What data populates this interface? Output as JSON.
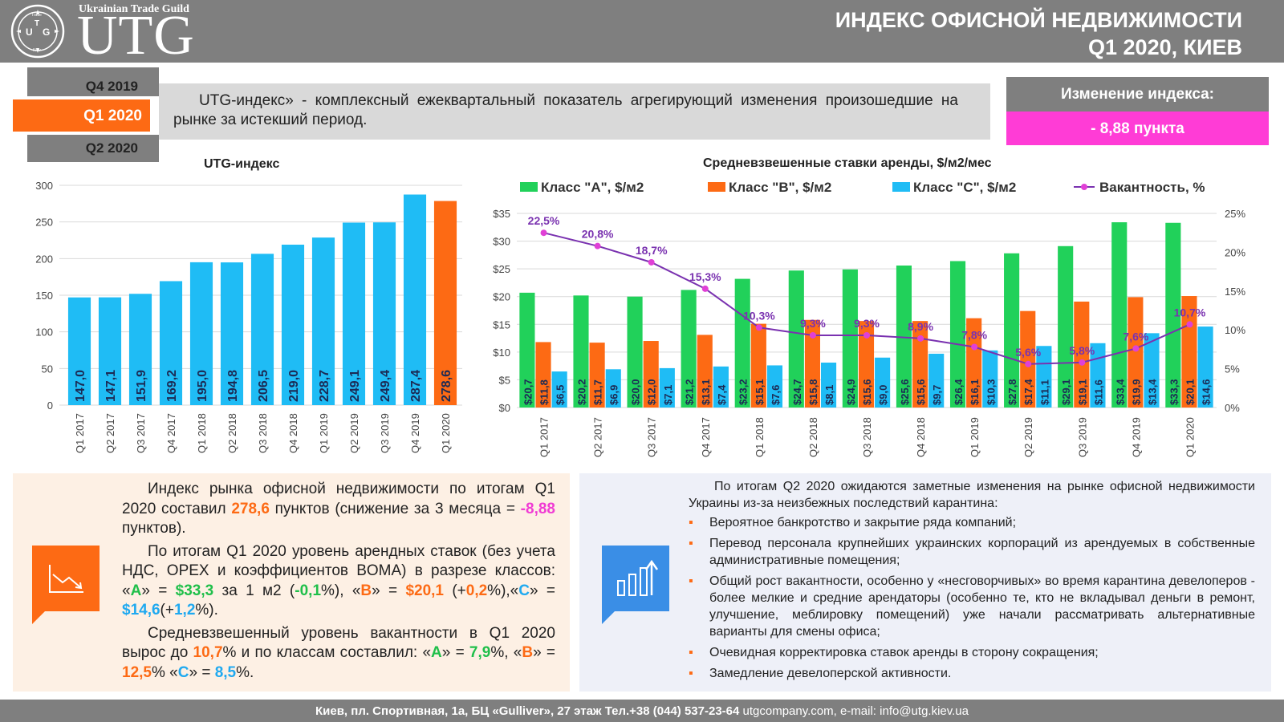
{
  "header": {
    "logo_guild": "Ukrainian Trade Guild",
    "logo_text": "UTG",
    "logo_emblem": {
      "letters": [
        "U",
        "T",
        "G"
      ],
      "small_words": [
        "Trade",
        "Guild",
        "Kiev",
        "Ukrainian"
      ]
    },
    "title_line1": "ИНДЕКС ОФИСНОЙ НЕДВИЖИМОСТИ",
    "title_line2": "Q1 2020, КИЕВ"
  },
  "quarters": {
    "prev": "Q4 2019",
    "current": "Q1 2020",
    "next": "Q2 2020"
  },
  "description": "UTG-индекс» - комплексный ежеквартальный показатель агрегирующий изменения произошедшие на рынке за истекший период.",
  "index_change": {
    "label": "Изменение индекса:",
    "value": "- 8,88 пункта"
  },
  "colors": {
    "orange": "#fd6a14",
    "blue": "#1fbcf5",
    "green": "#21d15a",
    "pink": "#ff3cd6",
    "purple": "#7a32b0",
    "gray": "#7f7f7f"
  },
  "chart_data": [
    {
      "type": "bar",
      "title": "UTG-индекс",
      "categories": [
        "Q1 2017",
        "Q2 2017",
        "Q3 2017",
        "Q4 2017",
        "Q1 2018",
        "Q2 2018",
        "Q3 2018",
        "Q4 2018",
        "Q1 2019",
        "Q2 2019",
        "Q3 2019",
        "Q4 2019",
        "Q1 2020"
      ],
      "values": [
        147.0,
        147.1,
        151.9,
        169.2,
        195.0,
        194.8,
        206.5,
        219.0,
        228.7,
        249.1,
        249.4,
        287.4,
        278.6
      ],
      "value_labels": [
        "147,0",
        "147,1",
        "151,9",
        "169,2",
        "195,0",
        "194,8",
        "206,5",
        "219,0",
        "228,7",
        "249,1",
        "249,4",
        "287,4",
        "278,6"
      ],
      "highlight_last": true,
      "ylim": [
        0,
        300
      ],
      "yticks": [
        0,
        50,
        100,
        150,
        200,
        250,
        300
      ],
      "grid": true
    },
    {
      "type": "bar",
      "title": "Средневзвешенные ставки аренды, $/м2/мес",
      "categories": [
        "Q1 2017",
        "Q2 2017",
        "Q3 2017",
        "Q4 2017",
        "Q1 2018",
        "Q2 2018",
        "Q3 2018",
        "Q4 2018",
        "Q1 2019",
        "Q2 2019",
        "Q3 2019",
        "Q4 2019",
        "Q1 2020"
      ],
      "series": [
        {
          "name": "Класс \"А\", $/м2",
          "values": [
            20.7,
            20.2,
            20.0,
            21.2,
            23.2,
            24.7,
            24.9,
            25.6,
            26.4,
            27.8,
            29.1,
            33.4,
            33.3
          ],
          "labels": [
            "$20,7",
            "$20,2",
            "$20,0",
            "$21,2",
            "$23,2",
            "$24,7",
            "$24,9",
            "$25,6",
            "$26,4",
            "$27,8",
            "$29,1",
            "$33,4",
            "$33,3"
          ]
        },
        {
          "name": "Класс \"В\", $/м2",
          "values": [
            11.8,
            11.7,
            12.0,
            13.1,
            15.1,
            15.8,
            15.6,
            15.6,
            16.1,
            17.4,
            19.1,
            19.9,
            20.1
          ],
          "labels": [
            "$11,8",
            "$11,7",
            "$12,0",
            "$13,1",
            "$15,1",
            "$15,8",
            "$15,6",
            "$15,6",
            "$16,1",
            "$17,4",
            "$19,1",
            "$19,9",
            "$20,1"
          ]
        },
        {
          "name": "Класс \"С\", $/м2",
          "values": [
            6.5,
            6.9,
            7.1,
            7.4,
            7.6,
            8.1,
            9.0,
            9.7,
            10.3,
            11.1,
            11.6,
            13.4,
            14.6
          ],
          "labels": [
            "$6,5",
            "$6,9",
            "$7,1",
            "$7,4",
            "$7,6",
            "$8,1",
            "$9,0",
            "$9,7",
            "$10,3",
            "$11,1",
            "$11,6",
            "$13,4",
            "$14,6"
          ]
        },
        {
          "name": "Вакантность, %",
          "type": "line",
          "axis": "right",
          "values": [
            22.5,
            20.8,
            18.7,
            15.3,
            10.3,
            9.3,
            9.3,
            8.9,
            7.8,
            5.6,
            5.8,
            7.6,
            10.7
          ],
          "labels": [
            "22,5%",
            "20,8%",
            "18,7%",
            "15,3%",
            "10,3%",
            "9,3%",
            "9,3%",
            "8,9%",
            "7,8%",
            "5,6%",
            "5,8%",
            "7,6%",
            "10,7%"
          ]
        }
      ],
      "ylim": [
        0,
        35
      ],
      "yticks": [
        "$0",
        "$5",
        "$10",
        "$15",
        "$20",
        "$25",
        "$30",
        "$35"
      ],
      "y2lim": [
        0,
        25
      ],
      "y2ticks": [
        "0%",
        "5%",
        "10%",
        "15%",
        "20%",
        "25%"
      ],
      "legend": "top",
      "grid": true
    }
  ],
  "left_panel": {
    "icon": "chart-down-icon",
    "p1": [
      "Индекс рынка офисной недвижимости по итогам Q1 2020 составил ",
      "278,6",
      " пунктов (снижение  за 3 месяца = ",
      "-8,88",
      " пунктов)."
    ],
    "p2": [
      "По итогам Q1 2020 уровень арендных ставок (без учета НДС, OPEX и коэффициентов BOMA) в  разрезе классов: «",
      "А",
      "» = ",
      "$33,3",
      " за 1 м2 (",
      "-0,1",
      "%), «",
      "В",
      "» = ",
      "$20,1",
      " (+",
      "0,2",
      "%),«",
      "С",
      "» = ",
      "$14,6",
      "(+",
      "1,2",
      "%)."
    ],
    "p3": [
      "Средневзвешенный уровень вакантности в Q1 2020 вырос до ",
      "10,7",
      "% и по классам составлил: «",
      "А",
      "» = ",
      "7,9",
      "%, «",
      "В",
      "» = ",
      "12,5",
      "% «",
      "С",
      "» = ",
      "8,5",
      "%."
    ]
  },
  "right_panel": {
    "icon": "chart-up-icon",
    "lead": "По итогам Q2 2020 ожидаются заметные изменения на рынке офисной недвижимости Украины из-за неизбежных последствий карантина:",
    "bullet": "▪",
    "items": [
      "Вероятное банкротство и закрытие ряда компаний;",
      "Перевод персонала крупнейших украинских корпораций из арендуемых в собственные административные помещения;",
      "Общий рост вакантности, особенно у «несговорчивых» во время карантина девелоперов - более мелкие и средние арендаторы (особенно те, кто не вкладывал деньги в ремонт, улучшение, меблировку помещений) уже начали рассматривать альтернативные варианты для смены офиса;",
      "Очевидная корректировка ставок аренды в сторону сокращения;",
      "Замедление девелоперской активности."
    ]
  },
  "footer": {
    "address": "Киев, пл. Спортивная, 1а, БЦ «Gulliver», 27 этаж Тел.+38 (044) 537-23-64",
    "contacts": " utgcompany.com,  e-mail: info@utg.kiev.ua"
  }
}
